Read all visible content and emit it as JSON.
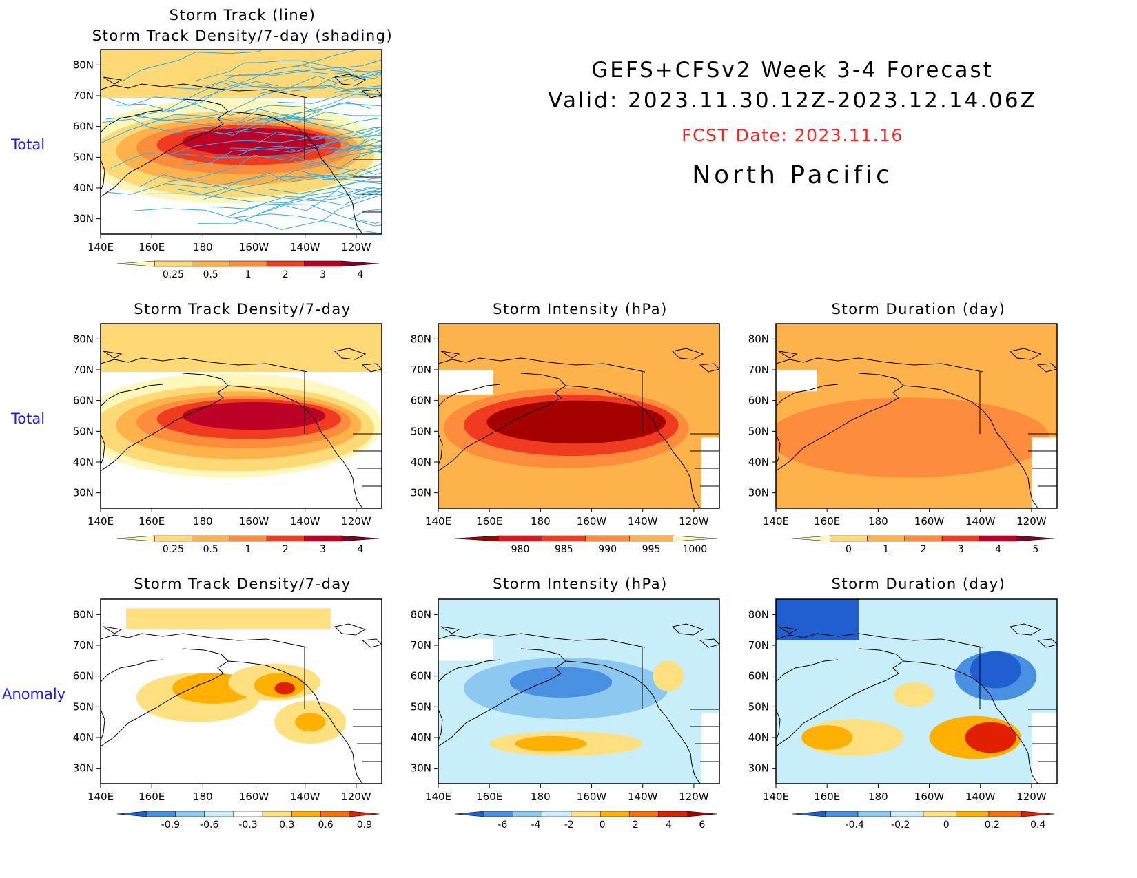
{
  "header": {
    "title_line1": "GEFS+CFSv2 Week 3-4 Forecast",
    "title_line2": "Valid: 2023.11.30.12Z-2023.12.14.06Z",
    "fcst_date": "FCST Date: 2023.11.16",
    "region": "North Pacific",
    "fcst_color": "#ff2020"
  },
  "row_labels": [
    "Total",
    "Total",
    "Anomaly"
  ],
  "axes": {
    "lon_labels": [
      "140E",
      "160E",
      "180",
      "160W",
      "140W",
      "120W"
    ],
    "lat_labels": [
      "80N",
      "70N",
      "60N",
      "50N",
      "40N",
      "30N"
    ]
  },
  "panels": [
    {
      "id": "p0",
      "title_line1": "Storm Track (line)",
      "title_line2": "Storm Track Density/7-day (shading)",
      "kind": "density",
      "tracks": true,
      "colorbar": "density"
    },
    {
      "id": "p1",
      "title_line1": "Storm Track Density/7-day",
      "kind": "density",
      "colorbar": "density"
    },
    {
      "id": "p2",
      "title_line1": "Storm Intensity (hPa)",
      "kind": "intensity",
      "colorbar": "intensity"
    },
    {
      "id": "p3",
      "title_line1": "Storm Duration (day)",
      "kind": "duration",
      "colorbar": "duration"
    },
    {
      "id": "p4",
      "title_line1": "Storm Track Density/7-day",
      "kind": "anom_density",
      "colorbar": "anom_density"
    },
    {
      "id": "p5",
      "title_line1": "Storm Intensity (hPa)",
      "kind": "anom_intensity",
      "colorbar": "anom_intensity"
    },
    {
      "id": "p6",
      "title_line1": "Storm Duration (day)",
      "kind": "anom_duration",
      "colorbar": "anom_duration"
    }
  ],
  "colorbars": {
    "density": {
      "labels": [
        "0.25",
        "0.5",
        "1",
        "2",
        "3",
        "4"
      ],
      "colors": [
        "#fff7bc",
        "#fed976",
        "#feb24c",
        "#fd8d3c",
        "#f03b20",
        "#bd0026",
        "#800026"
      ]
    },
    "intensity": {
      "labels": [
        "980",
        "985",
        "990",
        "995",
        "1000"
      ],
      "colors": [
        "#a50000",
        "#d7191c",
        "#f03b20",
        "#fd8d3c",
        "#feb24c",
        "#fff7bc"
      ]
    },
    "duration": {
      "labels": [
        "0",
        "1",
        "2",
        "3",
        "4",
        "5"
      ],
      "colors": [
        "#fff7bc",
        "#fed976",
        "#feb24c",
        "#fd8d3c",
        "#f03b20",
        "#bd0026",
        "#800026"
      ]
    },
    "anom_density": {
      "labels": [
        "-0.9",
        "-0.6",
        "-0.3",
        "0.3",
        "0.6",
        "0.9"
      ],
      "colors": [
        "#1f5fd0",
        "#4a90e2",
        "#8cc8f0",
        "#c8eefa",
        "#ffffff",
        "#ffe080",
        "#ffb000",
        "#ff7000",
        "#e02000"
      ]
    },
    "anom_intensity": {
      "labels": [
        "-6",
        "-4",
        "-2",
        "0",
        "2",
        "4",
        "6"
      ],
      "colors": [
        "#1f5fd0",
        "#4a90e2",
        "#8cc8f0",
        "#c8eefa",
        "#ffe080",
        "#ffb000",
        "#ff7000",
        "#e02000",
        "#a00000"
      ]
    },
    "anom_duration": {
      "labels": [
        "-0.4",
        "-0.2",
        "0",
        "0.2",
        "0.4"
      ],
      "colors": [
        "#1f5fd0",
        "#4a90e2",
        "#8cc8f0",
        "#c8eefa",
        "#ffe080",
        "#ffb000",
        "#ff7000",
        "#e02000"
      ]
    }
  }
}
